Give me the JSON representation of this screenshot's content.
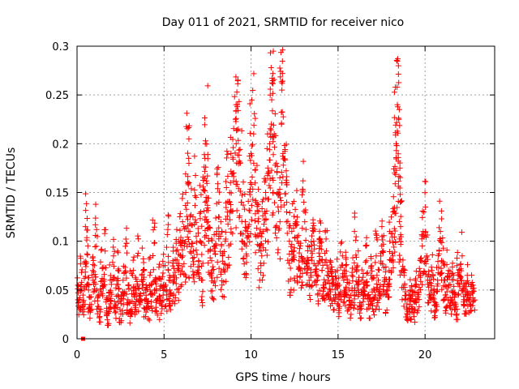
{
  "chart_data": {
    "type": "scatter",
    "title": "Day 011 of 2021, SRMTID for receiver nico",
    "xlabel": "GPS time / hours",
    "ylabel": "SRMTID / TECUs",
    "xlim": [
      0,
      24
    ],
    "ylim": [
      0,
      0.3
    ],
    "xticks": [
      0,
      5,
      10,
      15,
      20
    ],
    "xtick_labels": [
      "0",
      "5",
      "10",
      "15",
      "20"
    ],
    "yticks": [
      0,
      0.05,
      0.1,
      0.15,
      0.2,
      0.25,
      0.3
    ],
    "ytick_labels": [
      "0",
      "0.05",
      "0.1",
      "0.15",
      "0.2",
      "0.25",
      "0.3"
    ],
    "grid": true,
    "marker": "plus",
    "color": "#ff0000",
    "series": [
      {
        "name": "nico",
        "outlier": {
          "x": 0.35,
          "y": 0.0
        },
        "points": [
          [
            0.05,
            0.055
          ],
          [
            0.15,
            0.042
          ],
          [
            0.25,
            0.068
          ],
          [
            0.35,
            0.038
          ],
          [
            0.45,
            0.062
          ],
          [
            0.55,
            0.115
          ],
          [
            0.6,
            0.095
          ],
          [
            0.7,
            0.05
          ],
          [
            0.8,
            0.035
          ],
          [
            0.9,
            0.065
          ],
          [
            1.0,
            0.058
          ],
          [
            1.1,
            0.112
          ],
          [
            1.2,
            0.045
          ],
          [
            1.3,
            0.03
          ],
          [
            1.4,
            0.072
          ],
          [
            1.5,
            0.055
          ],
          [
            1.6,
            0.09
          ],
          [
            1.7,
            0.04
          ],
          [
            1.8,
            0.025
          ],
          [
            1.9,
            0.06
          ],
          [
            2.0,
            0.048
          ],
          [
            2.1,
            0.085
          ],
          [
            2.2,
            0.035
          ],
          [
            2.3,
            0.052
          ],
          [
            2.4,
            0.07
          ],
          [
            2.5,
            0.03
          ],
          [
            2.6,
            0.045
          ],
          [
            2.7,
            0.06
          ],
          [
            2.8,
            0.088
          ],
          [
            2.9,
            0.04
          ],
          [
            3.0,
            0.055
          ],
          [
            3.1,
            0.025
          ],
          [
            3.2,
            0.065
          ],
          [
            3.3,
            0.045
          ],
          [
            3.4,
            0.05
          ],
          [
            3.5,
            0.085
          ],
          [
            3.6,
            0.035
          ],
          [
            3.7,
            0.06
          ],
          [
            3.8,
            0.082
          ],
          [
            3.9,
            0.04
          ],
          [
            4.0,
            0.055
          ],
          [
            4.1,
            0.03
          ],
          [
            4.2,
            0.068
          ],
          [
            4.3,
            0.045
          ],
          [
            4.4,
            0.098
          ],
          [
            4.5,
            0.05
          ],
          [
            4.6,
            0.04
          ],
          [
            4.7,
            0.062
          ],
          [
            4.8,
            0.035
          ],
          [
            4.9,
            0.055
          ],
          [
            5.0,
            0.075
          ],
          [
            5.1,
            0.045
          ],
          [
            5.2,
            0.112
          ],
          [
            5.3,
            0.06
          ],
          [
            5.4,
            0.05
          ],
          [
            5.5,
            0.08
          ],
          [
            5.6,
            0.065
          ],
          [
            5.7,
            0.09
          ],
          [
            5.8,
            0.07
          ],
          [
            5.9,
            0.1
          ],
          [
            6.0,
            0.085
          ],
          [
            6.1,
            0.12
          ],
          [
            6.2,
            0.095
          ],
          [
            6.3,
            0.15
          ],
          [
            6.35,
            0.185
          ],
          [
            6.4,
            0.205
          ],
          [
            6.5,
            0.11
          ],
          [
            6.6,
            0.125
          ],
          [
            6.7,
            0.09
          ],
          [
            6.8,
            0.145
          ],
          [
            6.9,
            0.105
          ],
          [
            7.0,
            0.08
          ],
          [
            7.1,
            0.13
          ],
          [
            7.2,
            0.06
          ],
          [
            7.3,
            0.152
          ],
          [
            7.35,
            0.185
          ],
          [
            7.4,
            0.2
          ],
          [
            7.45,
            0.203
          ],
          [
            7.5,
            0.12
          ],
          [
            7.6,
            0.1
          ],
          [
            7.7,
            0.08
          ],
          [
            7.8,
            0.07
          ],
          [
            7.9,
            0.095
          ],
          [
            8.0,
            0.11
          ],
          [
            8.1,
            0.14
          ],
          [
            8.2,
            0.12
          ],
          [
            8.3,
            0.085
          ],
          [
            8.4,
            0.07
          ],
          [
            8.5,
            0.1
          ],
          [
            8.6,
            0.155
          ],
          [
            8.7,
            0.13
          ],
          [
            8.8,
            0.16
          ],
          [
            8.9,
            0.19
          ],
          [
            9.0,
            0.17
          ],
          [
            9.1,
            0.2
          ],
          [
            9.2,
            0.24
          ],
          [
            9.25,
            0.238
          ],
          [
            9.3,
            0.215
          ],
          [
            9.4,
            0.18
          ],
          [
            9.5,
            0.14
          ],
          [
            9.6,
            0.12
          ],
          [
            9.7,
            0.095
          ],
          [
            9.8,
            0.11
          ],
          [
            9.9,
            0.16
          ],
          [
            10.0,
            0.19
          ],
          [
            10.1,
            0.21
          ],
          [
            10.2,
            0.18
          ],
          [
            10.3,
            0.14
          ],
          [
            10.4,
            0.12
          ],
          [
            10.5,
            0.095
          ],
          [
            10.6,
            0.085
          ],
          [
            10.7,
            0.11
          ],
          [
            10.8,
            0.13
          ],
          [
            10.9,
            0.15
          ],
          [
            11.0,
            0.17
          ],
          [
            11.1,
            0.2
          ],
          [
            11.15,
            0.245
          ],
          [
            11.2,
            0.278
          ],
          [
            11.25,
            0.272
          ],
          [
            11.3,
            0.21
          ],
          [
            11.4,
            0.18
          ],
          [
            11.5,
            0.15
          ],
          [
            11.6,
            0.12
          ],
          [
            11.7,
            0.22
          ],
          [
            11.75,
            0.255
          ],
          [
            11.8,
            0.262
          ],
          [
            11.9,
            0.19
          ],
          [
            12.0,
            0.16
          ],
          [
            12.1,
            0.13
          ],
          [
            12.2,
            0.1
          ],
          [
            12.3,
            0.08
          ],
          [
            12.4,
            0.11
          ],
          [
            12.5,
            0.09
          ],
          [
            12.6,
            0.12
          ],
          [
            12.7,
            0.1
          ],
          [
            12.8,
            0.08
          ],
          [
            12.9,
            0.07
          ],
          [
            13.0,
            0.14
          ],
          [
            13.1,
            0.12
          ],
          [
            13.2,
            0.095
          ],
          [
            13.3,
            0.08
          ],
          [
            13.4,
            0.065
          ],
          [
            13.5,
            0.09
          ],
          [
            13.6,
            0.11
          ],
          [
            13.7,
            0.075
          ],
          [
            13.8,
            0.06
          ],
          [
            13.9,
            0.08
          ],
          [
            14.0,
            0.1
          ],
          [
            14.1,
            0.07
          ],
          [
            14.2,
            0.055
          ],
          [
            14.3,
            0.09
          ],
          [
            14.4,
            0.065
          ],
          [
            14.5,
            0.05
          ],
          [
            14.6,
            0.08
          ],
          [
            14.7,
            0.06
          ],
          [
            14.8,
            0.045
          ],
          [
            14.9,
            0.07
          ],
          [
            15.0,
            0.055
          ],
          [
            15.1,
            0.04
          ],
          [
            15.2,
            0.085
          ],
          [
            15.3,
            0.06
          ],
          [
            15.4,
            0.045
          ],
          [
            15.5,
            0.075
          ],
          [
            15.6,
            0.05
          ],
          [
            15.7,
            0.035
          ],
          [
            15.8,
            0.065
          ],
          [
            15.9,
            0.045
          ],
          [
            16.0,
            0.11
          ],
          [
            16.1,
            0.07
          ],
          [
            16.2,
            0.05
          ],
          [
            16.3,
            0.03
          ],
          [
            16.4,
            0.06
          ],
          [
            16.5,
            0.045
          ],
          [
            16.6,
            0.08
          ],
          [
            16.7,
            0.055
          ],
          [
            16.8,
            0.035
          ],
          [
            16.9,
            0.065
          ],
          [
            17.0,
            0.05
          ],
          [
            17.1,
            0.04
          ],
          [
            17.2,
            0.085
          ],
          [
            17.3,
            0.06
          ],
          [
            17.4,
            0.045
          ],
          [
            17.5,
            0.115
          ],
          [
            17.6,
            0.09
          ],
          [
            17.7,
            0.06
          ],
          [
            17.8,
            0.045
          ],
          [
            17.9,
            0.07
          ],
          [
            18.0,
            0.1
          ],
          [
            18.1,
            0.085
          ],
          [
            18.2,
            0.13
          ],
          [
            18.25,
            0.17
          ],
          [
            18.3,
            0.2
          ],
          [
            18.35,
            0.24
          ],
          [
            18.4,
            0.28
          ],
          [
            18.45,
            0.235
          ],
          [
            18.5,
            0.175
          ],
          [
            18.55,
            0.14
          ],
          [
            18.6,
            0.115
          ],
          [
            18.7,
            0.07
          ],
          [
            18.8,
            0.055
          ],
          [
            18.9,
            0.04
          ],
          [
            19.0,
            0.03
          ],
          [
            19.1,
            0.05
          ],
          [
            19.2,
            0.035
          ],
          [
            19.3,
            0.045
          ],
          [
            19.4,
            0.03
          ],
          [
            19.5,
            0.055
          ],
          [
            19.6,
            0.04
          ],
          [
            19.7,
            0.065
          ],
          [
            19.8,
            0.095
          ],
          [
            19.9,
            0.11
          ],
          [
            20.0,
            0.13
          ],
          [
            20.1,
            0.085
          ],
          [
            20.2,
            0.06
          ],
          [
            20.3,
            0.045
          ],
          [
            20.4,
            0.07
          ],
          [
            20.5,
            0.05
          ],
          [
            20.6,
            0.035
          ],
          [
            20.7,
            0.06
          ],
          [
            20.8,
            0.09
          ],
          [
            20.9,
            0.11
          ],
          [
            21.0,
            0.08
          ],
          [
            21.1,
            0.06
          ],
          [
            21.2,
            0.045
          ],
          [
            21.3,
            0.07
          ],
          [
            21.4,
            0.055
          ],
          [
            21.5,
            0.04
          ],
          [
            21.6,
            0.065
          ],
          [
            21.7,
            0.045
          ],
          [
            21.8,
            0.03
          ],
          [
            21.9,
            0.075
          ],
          [
            22.0,
            0.06
          ],
          [
            22.1,
            0.085
          ],
          [
            22.2,
            0.05
          ],
          [
            22.3,
            0.04
          ],
          [
            22.4,
            0.065
          ],
          [
            22.5,
            0.045
          ],
          [
            22.6,
            0.035
          ],
          [
            22.7,
            0.055
          ],
          [
            22.8,
            0.042
          ]
        ]
      }
    ]
  }
}
